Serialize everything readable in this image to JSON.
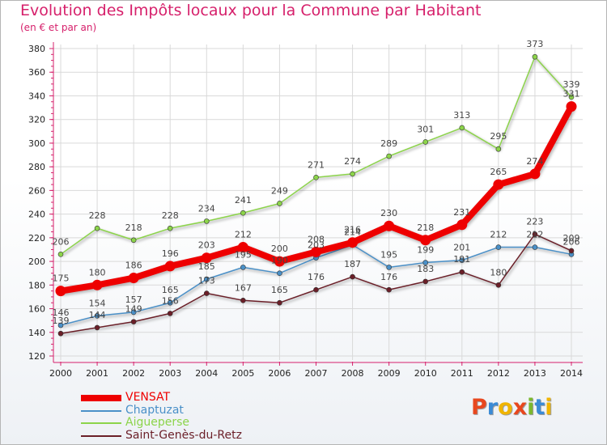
{
  "title": "Evolution des Impôts locaux pour la Commune par Habitant",
  "subtitle": "(en € et par an)",
  "logo": {
    "letters": [
      "P",
      "r",
      "o",
      "x",
      "i",
      "t",
      "i"
    ],
    "colors": [
      "#e8471e",
      "#3b8bd6",
      "#f0b400",
      "#e8471e",
      "#7cb82f",
      "#3b8bd6",
      "#f0b400"
    ]
  },
  "chart_data": {
    "type": "line",
    "title": "Evolution des Impôts locaux pour la Commune par Habitant",
    "subtitle": "(en € et par an)",
    "x": [
      2000,
      2001,
      2002,
      2003,
      2004,
      2005,
      2006,
      2007,
      2008,
      2009,
      2010,
      2011,
      2012,
      2013,
      2014
    ],
    "ylim": [
      120,
      380
    ],
    "yticks": [
      120,
      140,
      160,
      180,
      200,
      220,
      240,
      260,
      280,
      300,
      320,
      340,
      360,
      380
    ],
    "grid": true,
    "legend": "bottom-left",
    "series": [
      {
        "name": "VENSAT",
        "color": "#ee0000",
        "values": [
          175,
          180,
          186,
          196,
          203,
          212,
          200,
          208,
          216,
          230,
          218,
          231,
          265,
          274,
          331
        ]
      },
      {
        "name": "Chaptuzat",
        "color": "#4a90c8",
        "values": [
          146,
          154,
          157,
          165,
          185,
          195,
          190,
          203,
          214,
          195,
          199,
          201,
          212,
          212,
          206
        ]
      },
      {
        "name": "Aigueperse",
        "color": "#8cd44a",
        "values": [
          206,
          228,
          218,
          228,
          234,
          241,
          249,
          271,
          274,
          289,
          301,
          313,
          295,
          373,
          339
        ]
      },
      {
        "name": "Saint-Genès-du-Retz",
        "color": "#6b1f28",
        "values": [
          139,
          144,
          149,
          156,
          173,
          167,
          165,
          176,
          187,
          176,
          183,
          191,
          180,
          223,
          209
        ]
      }
    ],
    "data_labels": {
      "VENSAT": [
        "175",
        "180",
        "186",
        "196",
        "203",
        "212",
        "200",
        "208",
        "216",
        "230",
        "218",
        "231",
        "265",
        "274",
        "331"
      ],
      "Chaptuzat": [
        "146",
        "154",
        "157",
        "165",
        "185",
        "195",
        "190",
        "203",
        "214",
        "195",
        "199",
        "201",
        "212",
        "212",
        "206"
      ],
      "Aigueperse": [
        "206",
        "228",
        "218",
        "228",
        "234",
        "241",
        "249",
        "271",
        "274",
        "289",
        "301",
        "313",
        "295",
        "373",
        "339"
      ],
      "Saint-Genès-du-Retz": [
        "139",
        "144",
        "149",
        "156",
        "173",
        "167",
        "165",
        "176",
        "187",
        "176",
        "183",
        "191",
        "180",
        "223",
        "209"
      ]
    }
  }
}
